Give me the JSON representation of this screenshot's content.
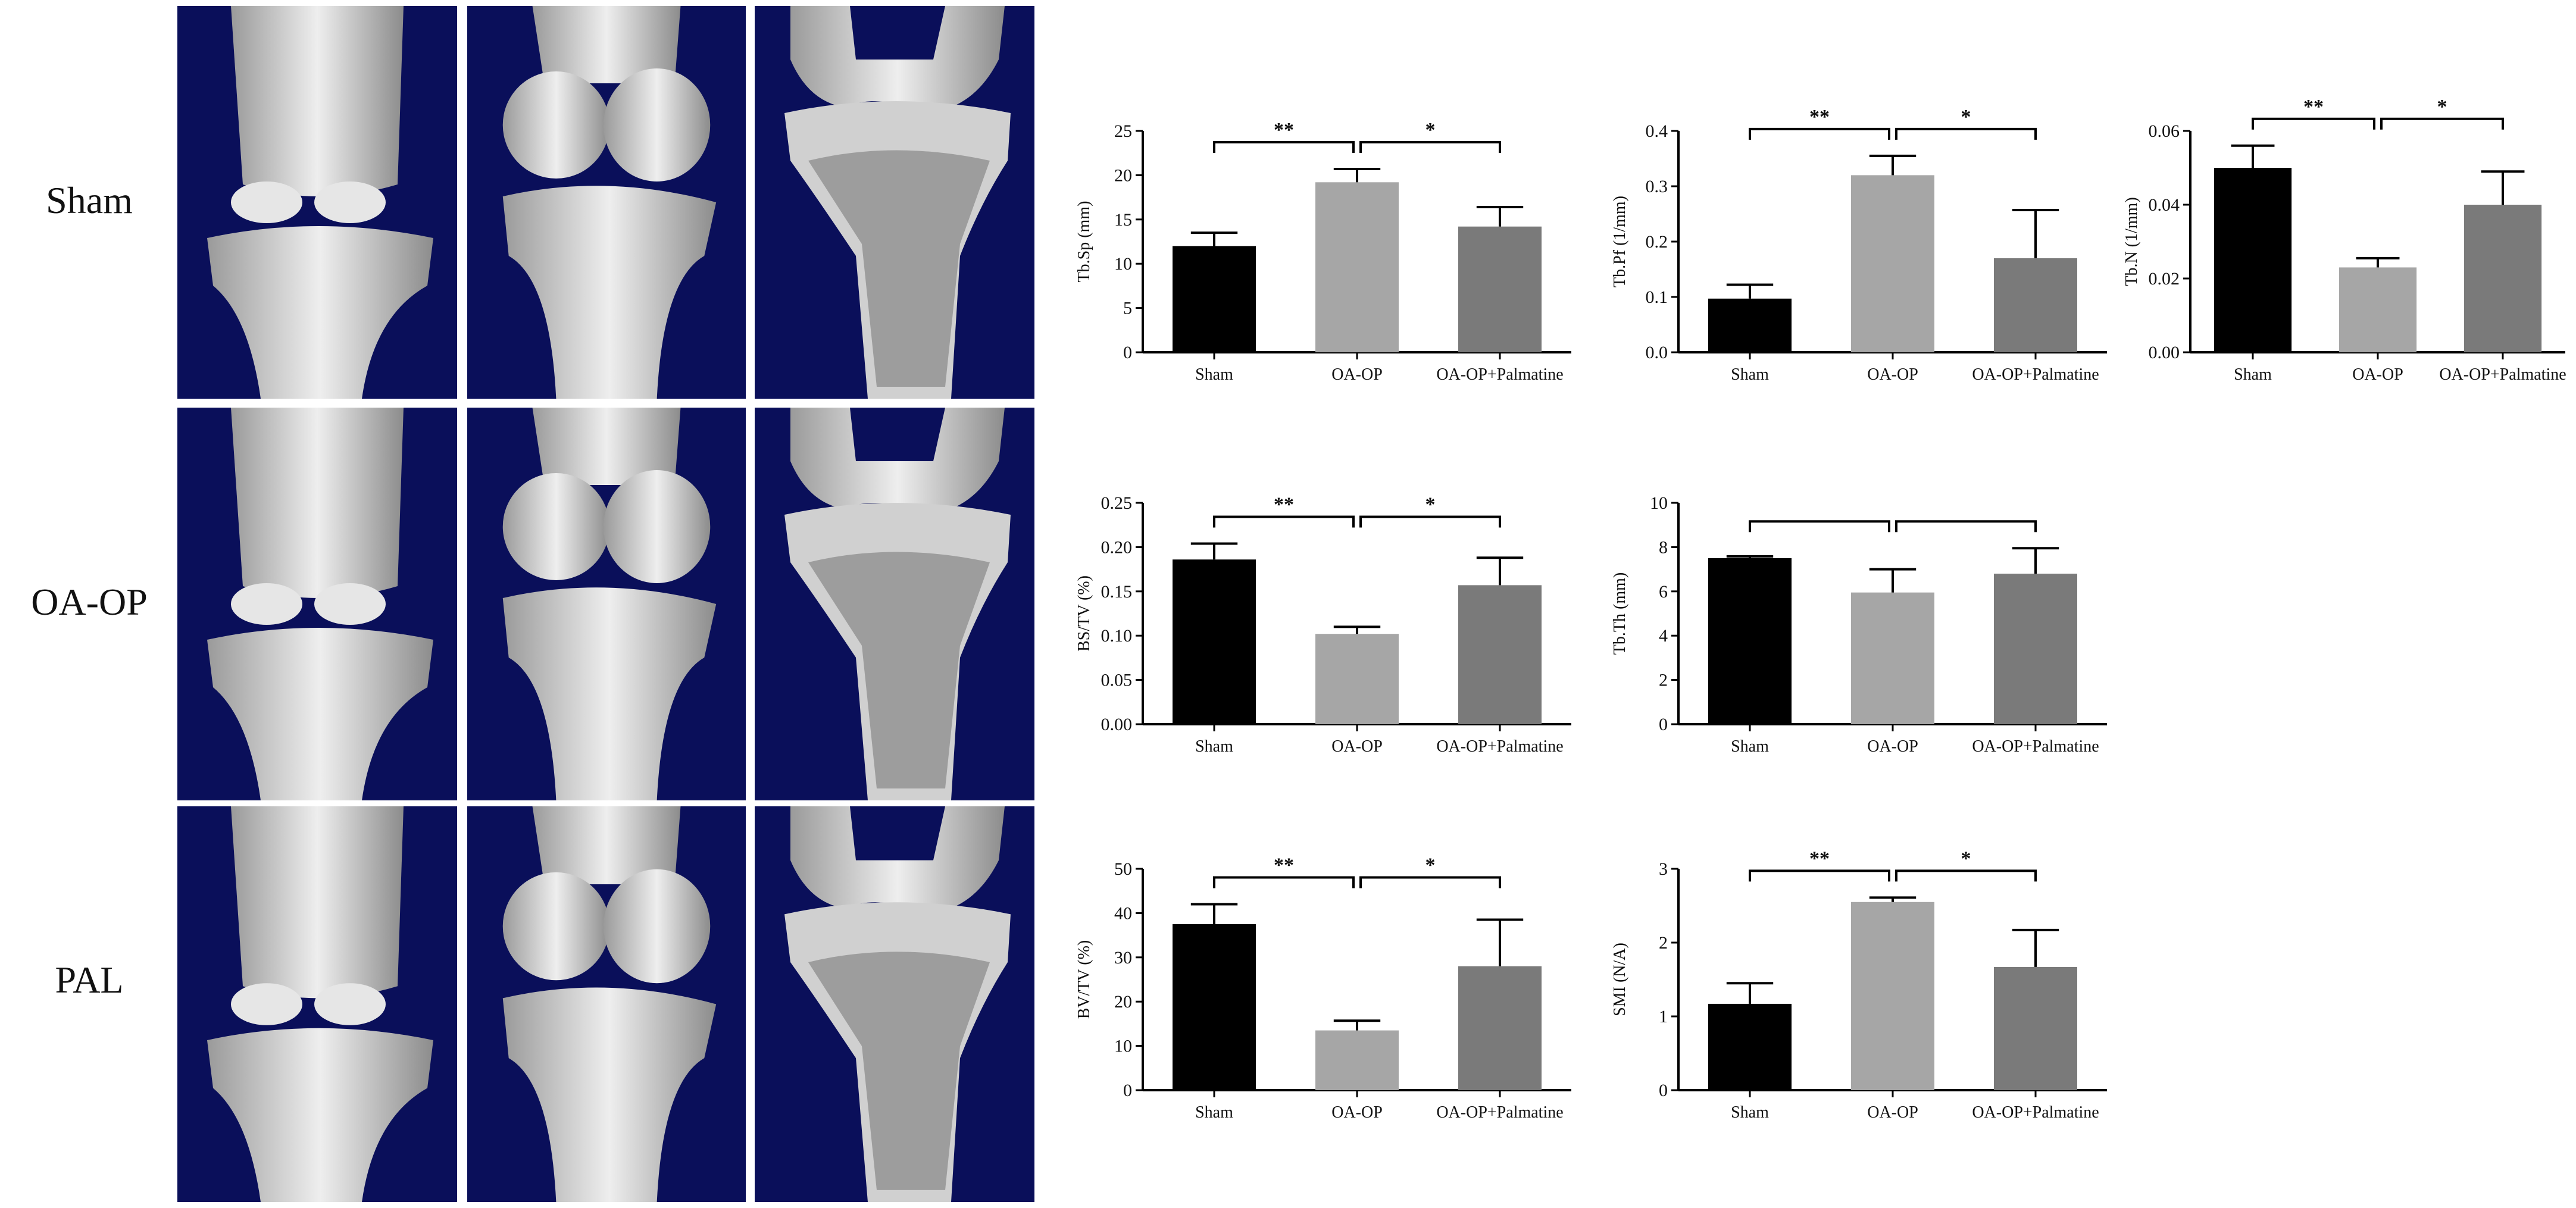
{
  "row_labels": [
    "Sham",
    "OA-OP",
    "PAL"
  ],
  "image_tiles": [
    {
      "name": "sham-knee-front-image"
    },
    {
      "name": "sham-knee-side-image"
    },
    {
      "name": "sham-tibia-section-image"
    },
    {
      "name": "oaop-knee-front-image"
    },
    {
      "name": "oaop-knee-side-image"
    },
    {
      "name": "oaop-tibia-section-image"
    },
    {
      "name": "pal-knee-front-image"
    },
    {
      "name": "pal-knee-side-image"
    },
    {
      "name": "pal-tibia-section-image"
    }
  ],
  "colors": {
    "sham": "#000000",
    "oa_op": "#a6a6a6",
    "oa_op_palmatine": "#7a7a7a",
    "image_bg": "#0a0f5a",
    "bone": "#d9d9d9"
  },
  "chart_data": [
    {
      "type": "bar",
      "ylabel": "Tb.Sp (mm)",
      "categories": [
        "Sham",
        "OA-OP",
        "OA-OP+Palmatine"
      ],
      "values": [
        12,
        19.2,
        14.2
      ],
      "errors": [
        1.5,
        1.5,
        2.2
      ],
      "ylim": [
        0,
        25
      ],
      "yticks": [
        "0",
        "5",
        "10",
        "15",
        "20",
        "25"
      ],
      "sig": [
        "**",
        "*"
      ]
    },
    {
      "type": "bar",
      "ylabel": "Tb.Pf (1/mm)",
      "categories": [
        "Sham",
        "OA-OP",
        "OA-OP+Palmatine"
      ],
      "values": [
        0.097,
        0.32,
        0.17
      ],
      "errors": [
        0.025,
        0.035,
        0.087
      ],
      "ylim": [
        0,
        0.4
      ],
      "yticks": [
        "0.0",
        "0.1",
        "0.2",
        "0.3",
        "0.4"
      ],
      "sig": [
        "**",
        "*"
      ]
    },
    {
      "type": "bar",
      "ylabel": "Tb.N (1/mm)",
      "categories": [
        "Sham",
        "OA-OP",
        "OA-OP+Palmatine"
      ],
      "values": [
        0.05,
        0.023,
        0.04
      ],
      "errors": [
        0.006,
        0.0025,
        0.009
      ],
      "ylim": [
        0,
        0.06
      ],
      "yticks": [
        "0.00",
        "0.02",
        "0.04",
        "0.06"
      ],
      "sig": [
        "**",
        "*"
      ]
    },
    {
      "type": "bar",
      "ylabel": "BS/TV (%)",
      "categories": [
        "Sham",
        "OA-OP",
        "OA-OP+Palmatine"
      ],
      "values": [
        0.186,
        0.102,
        0.157
      ],
      "errors": [
        0.018,
        0.008,
        0.031
      ],
      "ylim": [
        0,
        0.25
      ],
      "yticks": [
        "0.00",
        "0.05",
        "0.10",
        "0.15",
        "0.20",
        "0.25"
      ],
      "sig": [
        "**",
        "*"
      ]
    },
    {
      "type": "bar",
      "ylabel": "Tb.Th (mm)",
      "categories": [
        "Sham",
        "OA-OP",
        "OA-OP+Palmatine"
      ],
      "values": [
        7.5,
        5.95,
        6.8
      ],
      "errors": [
        0.08,
        1.05,
        1.15
      ],
      "ylim": [
        0,
        10
      ],
      "yticks": [
        "0",
        "2",
        "4",
        "6",
        "8",
        "10"
      ],
      "sig": [
        "",
        ""
      ]
    },
    {
      "type": "bar",
      "ylabel": "BV/TV (%)",
      "categories": [
        "Sham",
        "OA-OP",
        "OA-OP+Palmatine"
      ],
      "values": [
        37.5,
        13.5,
        28
      ],
      "errors": [
        4.5,
        2.2,
        10.5
      ],
      "ylim": [
        0,
        50
      ],
      "yticks": [
        "0",
        "10",
        "20",
        "30",
        "40",
        "50"
      ],
      "sig": [
        "**",
        "*"
      ]
    },
    {
      "type": "bar",
      "ylabel": "SMI (N/A)",
      "categories": [
        "Sham",
        "OA-OP",
        "OA-OP+Palmatine"
      ],
      "values": [
        1.17,
        2.55,
        1.67
      ],
      "errors": [
        0.28,
        0.06,
        0.5
      ],
      "ylim": [
        0,
        3
      ],
      "yticks": [
        "0",
        "1",
        "2",
        "3"
      ],
      "sig": [
        "**",
        "*"
      ]
    }
  ]
}
